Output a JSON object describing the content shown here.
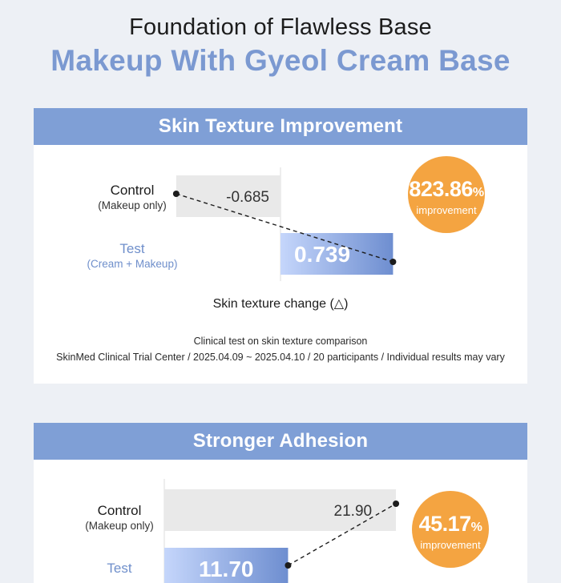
{
  "header": {
    "line1": "Foundation of Flawless Base",
    "line2": "Makeup With Gyeol Cream Base"
  },
  "colors": {
    "accent_blue": "#7f9fd6",
    "badge_orange": "#f4a441",
    "control_bar": "#e9e9e9",
    "test_bar_start": "#c5d6fb",
    "test_bar_end": "#6e8ed0"
  },
  "chart_data": [
    {
      "type": "bar",
      "orientation": "horizontal",
      "title": "Skin Texture Improvement",
      "xlabel": "Skin texture change (△)",
      "categories": [
        {
          "label": "Control",
          "sublabel": "(Makeup only)"
        },
        {
          "label": "Test",
          "sublabel": "(Cream + Makeup)"
        }
      ],
      "values": [
        -0.685,
        0.739
      ],
      "value_labels": [
        "-0.685",
        "0.739"
      ],
      "xlim": [
        -1.0,
        1.2
      ],
      "badge": {
        "value": "823.86",
        "unit": "%",
        "label": "improvement"
      },
      "footnote": [
        "Clinical test on skin texture comparison",
        "SkinMed Clinical Trial Center / 2025.04.09 ~ 2025.04.10 / 20 participants / Individual results may vary"
      ]
    },
    {
      "type": "bar",
      "orientation": "horizontal",
      "title": "Stronger Adhesion",
      "categories": [
        {
          "label": "Control",
          "sublabel": "(Makeup only)"
        },
        {
          "label": "Test",
          "sublabel": ""
        }
      ],
      "values": [
        21.9,
        11.7
      ],
      "value_labels": [
        "21.90",
        "11.70"
      ],
      "xlim": [
        0,
        25
      ],
      "badge": {
        "value": "45.17",
        "unit": "%",
        "label": "improvement"
      }
    }
  ]
}
